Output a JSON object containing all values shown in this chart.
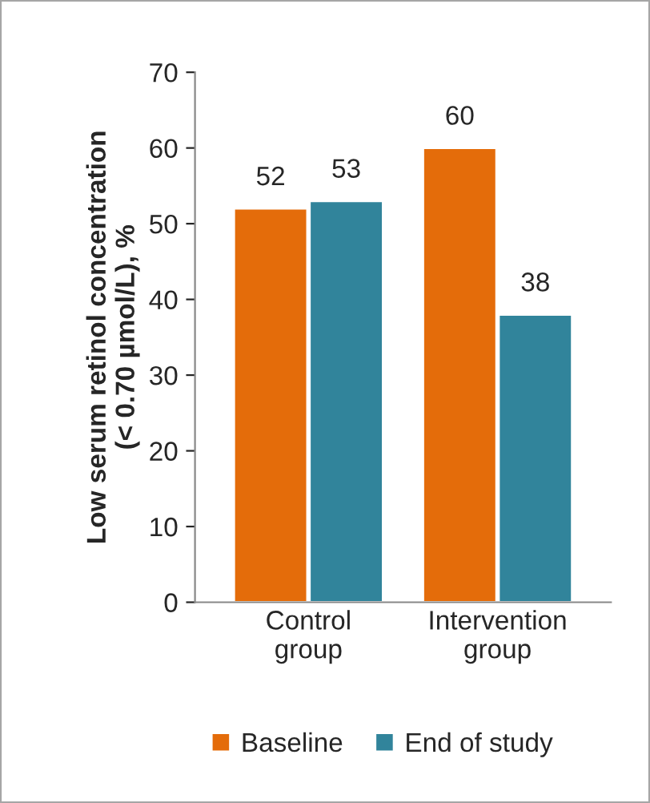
{
  "chart_data": {
    "type": "bar",
    "ylabel": "Low serum retinol concentration\n(< 0.70 µmol/L), %",
    "categories": [
      "Control\ngroup",
      "Intervention\ngroup"
    ],
    "series": [
      {
        "name": "Baseline",
        "color": "#e46c0a",
        "values": [
          52,
          60
        ]
      },
      {
        "name": "End of study",
        "color": "#31849b",
        "values": [
          53,
          38
        ]
      }
    ],
    "ylim": [
      0,
      70
    ],
    "yticks": [
      0,
      10,
      20,
      30,
      40,
      50,
      60,
      70
    ],
    "grid": false,
    "legend": "bottom",
    "data_labels": true
  }
}
